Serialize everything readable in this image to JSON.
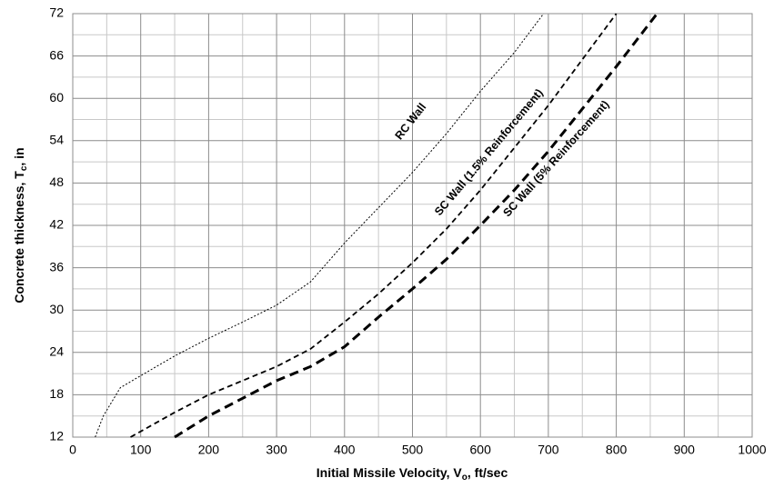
{
  "chart_data": {
    "type": "line",
    "x_label_parts": [
      "Initial Missile Velocity, V",
      "o",
      ", ft/sec"
    ],
    "y_label_parts": [
      "Concrete thickness, T",
      "c",
      ", in"
    ],
    "xlim": [
      0,
      1000
    ],
    "ylim": [
      12,
      72
    ],
    "xticks": [
      0,
      100,
      200,
      300,
      400,
      500,
      600,
      700,
      800,
      900,
      1000
    ],
    "yticks": [
      12,
      18,
      24,
      30,
      36,
      42,
      48,
      54,
      60,
      66,
      72
    ],
    "x_minor_ticks": [
      50,
      150,
      250,
      350,
      450,
      550,
      650,
      750,
      850,
      950
    ],
    "y_minor_ticks": [
      15,
      21,
      27,
      33,
      39,
      45,
      51,
      57,
      63,
      69
    ],
    "grid": true,
    "series": [
      {
        "name": "RC Wall",
        "color": "#000000",
        "width": 1,
        "dash": "2,2",
        "x": [
          33,
          45,
          70,
          100,
          150,
          200,
          250,
          300,
          350,
          400,
          450,
          500,
          550,
          600,
          650,
          693
        ],
        "values": [
          12,
          15,
          19,
          20.7,
          23.5,
          26,
          28.3,
          30.7,
          34,
          39.5,
          44.5,
          49.5,
          55,
          61,
          66.5,
          72
        ]
      },
      {
        "name": "SC Wall (1.5% Reinforcement)",
        "color": "#000000",
        "width": 1.8,
        "dash": "6,4",
        "x": [
          85,
          150,
          200,
          250,
          300,
          350,
          400,
          450,
          500,
          550,
          600,
          650,
          700,
          750,
          800
        ],
        "values": [
          12,
          15.5,
          18,
          20,
          22,
          24.5,
          28.3,
          32.3,
          36.7,
          41.5,
          47,
          53,
          59,
          65.5,
          72
        ]
      },
      {
        "name": "SC Wall (5% Reinforcement)",
        "color": "#000000",
        "width": 3,
        "dash": "10,6",
        "x": [
          150,
          200,
          250,
          300,
          350,
          400,
          450,
          500,
          550,
          600,
          650,
          700,
          750,
          800,
          860
        ],
        "values": [
          12,
          15,
          17.5,
          20,
          22,
          24.8,
          29,
          33,
          37.2,
          42,
          47,
          52.5,
          58.5,
          64.5,
          72
        ]
      }
    ]
  }
}
